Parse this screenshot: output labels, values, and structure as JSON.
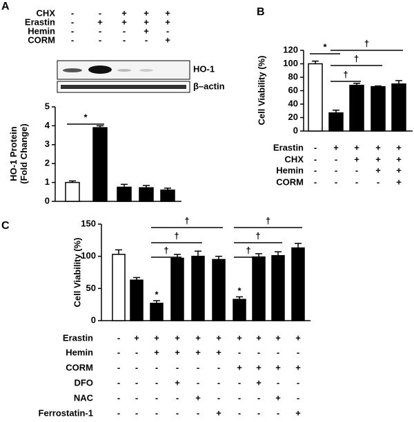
{
  "panels": [
    "A",
    "B",
    "C"
  ],
  "blot": {
    "labels": [
      "HO-1",
      "β–actin"
    ]
  },
  "chart_data": [
    {
      "type": "bar",
      "ylabel": [
        "HO-1 Protein",
        "(Fold Change)"
      ],
      "categories": [
        null,
        null,
        null,
        null,
        null
      ],
      "values": [
        1.0,
        3.9,
        0.75,
        0.72,
        0.6
      ],
      "errors": [
        0.08,
        0.1,
        0.15,
        0.12,
        0.1
      ],
      "colors": [
        "#ffffff",
        "#000000",
        "#000000",
        "#000000",
        "#000000"
      ],
      "ylim": [
        0,
        5
      ],
      "yticks": [
        0,
        1,
        2,
        3,
        4,
        5
      ],
      "treatments": [
        {
          "name": "CHX",
          "signs": [
            "-",
            "-",
            "+",
            "+",
            "+"
          ]
        },
        {
          "name": "Erastin",
          "signs": [
            "-",
            "+",
            "+",
            "+",
            "+"
          ]
        },
        {
          "name": "Hemin",
          "signs": [
            "-",
            "-",
            "-",
            "+",
            "-"
          ]
        },
        {
          "name": "CORM",
          "signs": [
            "-",
            "-",
            "-",
            "-",
            "+"
          ]
        }
      ],
      "brackets": [
        {
          "label": "*",
          "bars": [
            0,
            1
          ]
        }
      ]
    },
    {
      "type": "bar",
      "ylabel": [
        "Cell Viability (%)"
      ],
      "categories": [
        null,
        null,
        null,
        null,
        null
      ],
      "values": [
        100,
        27,
        68,
        66,
        70
      ],
      "errors": [
        4,
        4,
        3,
        1,
        5
      ],
      "colors": [
        "#ffffff",
        "#000000",
        "#000000",
        "#000000",
        "#000000"
      ],
      "ylim": [
        0,
        120
      ],
      "yticks": [
        0,
        20,
        40,
        60,
        80,
        100,
        120
      ],
      "treatments": [
        {
          "name": "Erastin",
          "signs": [
            "-",
            "+",
            "+",
            "+",
            "+"
          ]
        },
        {
          "name": "CHX",
          "signs": [
            "-",
            "-",
            "+",
            "+",
            "+"
          ]
        },
        {
          "name": "Hemin",
          "signs": [
            "-",
            "-",
            "-",
            "+",
            "+"
          ]
        },
        {
          "name": "CORM",
          "signs": [
            "-",
            "-",
            "-",
            "-",
            "+"
          ]
        }
      ],
      "brackets": [
        {
          "label": "*",
          "bars": [
            0,
            1
          ]
        },
        {
          "label": "†",
          "bars": [
            1,
            2
          ]
        },
        {
          "label": "†",
          "bars": [
            1,
            3
          ]
        },
        {
          "label": "†",
          "bars": [
            1,
            4
          ]
        }
      ]
    },
    {
      "type": "bar",
      "ylabel": [
        "Cell Viability (%)"
      ],
      "categories": [
        null,
        null,
        null,
        null,
        null,
        null,
        null,
        null,
        null,
        null
      ],
      "values": [
        103,
        63,
        27,
        97,
        100,
        95,
        33,
        99,
        101,
        113
      ],
      "errors": [
        7,
        4,
        4,
        6,
        8,
        5,
        4,
        5,
        6,
        7
      ],
      "colors": [
        "#ffffff",
        "#000000",
        "#000000",
        "#000000",
        "#000000",
        "#000000",
        "#000000",
        "#000000",
        "#000000",
        "#000000"
      ],
      "ylim": [
        0,
        150
      ],
      "yticks": [
        0,
        50,
        100,
        150
      ],
      "treatments": [
        {
          "name": "Erastin",
          "signs": [
            "-",
            "+",
            "+",
            "+",
            "+",
            "+",
            "+",
            "+",
            "+",
            "+"
          ]
        },
        {
          "name": "Hemin",
          "signs": [
            "-",
            "-",
            "+",
            "+",
            "+",
            "+",
            "-",
            "-",
            "-",
            "-"
          ]
        },
        {
          "name": "CORM",
          "signs": [
            "-",
            "-",
            "-",
            "-",
            "-",
            "-",
            "+",
            "+",
            "+",
            "+"
          ]
        },
        {
          "name": "DFO",
          "signs": [
            "-",
            "-",
            "-",
            "+",
            "-",
            "-",
            "-",
            "+",
            "-",
            "-"
          ]
        },
        {
          "name": "NAC",
          "signs": [
            "-",
            "-",
            "-",
            "-",
            "+",
            "-",
            "-",
            "-",
            "+",
            "-"
          ]
        },
        {
          "name": "Ferrostatin-1",
          "signs": [
            "-",
            "-",
            "-",
            "-",
            "-",
            "+",
            "-",
            "-",
            "-",
            "+"
          ]
        }
      ],
      "brackets": [
        {
          "label": "*",
          "bars": [
            2
          ]
        },
        {
          "label": "*",
          "bars": [
            6
          ]
        },
        {
          "label": "†",
          "bars": [
            2,
            3
          ]
        },
        {
          "label": "†",
          "bars": [
            2,
            4
          ]
        },
        {
          "label": "†",
          "bars": [
            2,
            5
          ]
        },
        {
          "label": "†",
          "bars": [
            6,
            7
          ]
        },
        {
          "label": "†",
          "bars": [
            6,
            8
          ]
        },
        {
          "label": "†",
          "bars": [
            6,
            9
          ]
        }
      ]
    }
  ]
}
